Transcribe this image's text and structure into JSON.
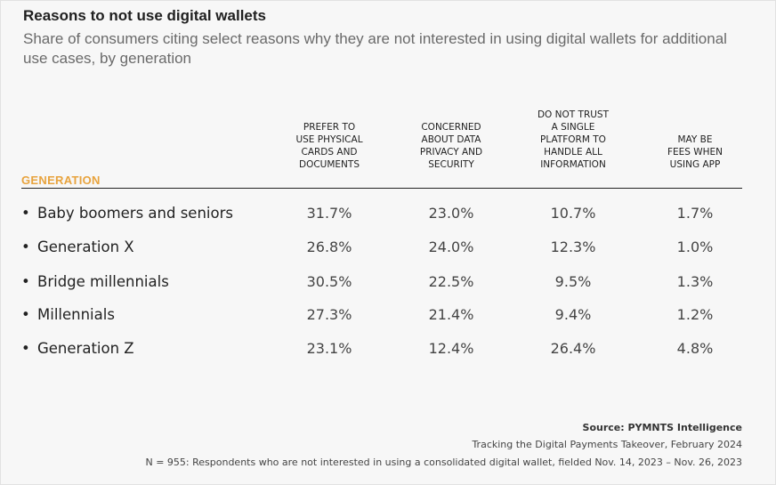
{
  "title": "Reasons to not use digital wallets",
  "subtitle": "Share of consumers citing select reasons why they are not interested in using digital wallets for additional use cases, by generation",
  "row_header": "GENERATION",
  "columns": [
    "PREFER TO\nUSE PHYSICAL\nCARDS AND\nDOCUMENTS",
    "CONCERNED\nABOUT DATA\nPRIVACY AND\nSECURITY",
    "DO NOT TRUST\nA SINGLE\nPLATFORM TO\nHANDLE ALL\nINFORMATION",
    "MAY BE\nFEES WHEN\nUSING APP"
  ],
  "rows": [
    {
      "label": "Baby boomers and seniors",
      "values": [
        "31.7%",
        "23.0%",
        "10.7%",
        "1.7%"
      ]
    },
    {
      "label": "Generation X",
      "values": [
        "26.8%",
        "24.0%",
        "12.3%",
        "1.0%"
      ]
    },
    {
      "label": "Bridge millennials",
      "values": [
        "30.5%",
        "22.5%",
        "9.5%",
        "1.3%"
      ]
    },
    {
      "label": "Millennials",
      "values": [
        "27.3%",
        "21.4%",
        "9.4%",
        "1.2%"
      ]
    },
    {
      "label": "Generation Z",
      "values": [
        "23.1%",
        "12.4%",
        "26.4%",
        "4.8%"
      ]
    }
  ],
  "bullet": "•",
  "source": "Source: PYMNTS Intelligence",
  "report": "Tracking the Digital Payments Takeover, February 2024",
  "note": "N = 955: Respondents who are not interested in using a consolidated digital wallet, fielded Nov. 14, 2023 – Nov. 26, 2023",
  "colors": {
    "accent": "#e8a33d",
    "text": "#222222",
    "subtitle": "#6a6a6a",
    "background": "#f7f7f7"
  },
  "chart_data": {
    "type": "table",
    "title": "Reasons to not use digital wallets",
    "subtitle": "Share of consumers citing select reasons why they are not interested in using digital wallets for additional use cases, by generation",
    "row_header": "GENERATION",
    "columns": [
      "PREFER TO USE PHYSICAL CARDS AND DOCUMENTS",
      "CONCERNED ABOUT DATA PRIVACY AND SECURITY",
      "DO NOT TRUST A SINGLE PLATFORM TO HANDLE ALL INFORMATION",
      "MAY BE FEES WHEN USING APP"
    ],
    "categories": [
      "Baby boomers and seniors",
      "Generation X",
      "Bridge millennials",
      "Millennials",
      "Generation Z"
    ],
    "series": [
      {
        "name": "PREFER TO USE PHYSICAL CARDS AND DOCUMENTS",
        "values": [
          31.7,
          26.8,
          30.5,
          27.3,
          23.1
        ]
      },
      {
        "name": "CONCERNED ABOUT DATA PRIVACY AND SECURITY",
        "values": [
          23.0,
          24.0,
          22.5,
          21.4,
          12.4
        ]
      },
      {
        "name": "DO NOT TRUST A SINGLE PLATFORM TO HANDLE ALL INFORMATION",
        "values": [
          10.7,
          12.3,
          9.5,
          9.4,
          26.4
        ]
      },
      {
        "name": "MAY BE FEES WHEN USING APP",
        "values": [
          1.7,
          1.0,
          1.3,
          1.2,
          4.8
        ]
      }
    ]
  }
}
